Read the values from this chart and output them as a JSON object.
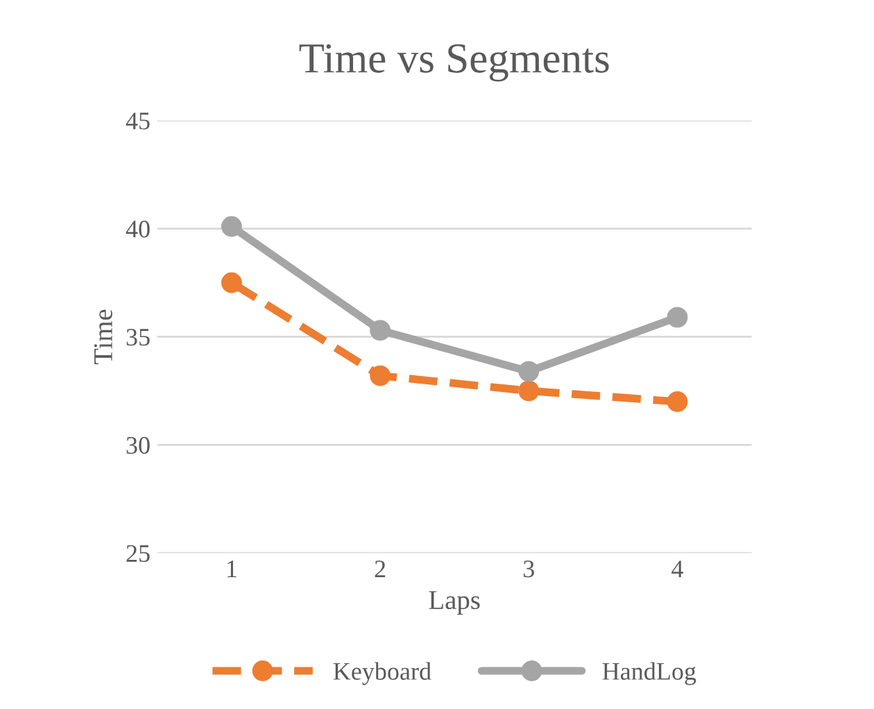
{
  "chart_data": {
    "type": "line",
    "title": "Time vs Segments",
    "xlabel": "Laps",
    "ylabel": "Time",
    "categories": [
      "1",
      "2",
      "3",
      "4"
    ],
    "series": [
      {
        "name": "Keyboard",
        "color": "#ed7d31",
        "values": [
          37.5,
          33.2,
          32.5,
          32.0
        ],
        "line_style": "dashed"
      },
      {
        "name": "HandLog",
        "color": "#a5a5a5",
        "values": [
          40.1,
          35.3,
          33.4,
          35.9
        ],
        "line_style": "solid"
      }
    ],
    "ylim": [
      25,
      45
    ],
    "yticks": [
      25,
      30,
      35,
      40,
      45
    ],
    "grid": "y",
    "legend": "bottom",
    "marker": "circle"
  }
}
